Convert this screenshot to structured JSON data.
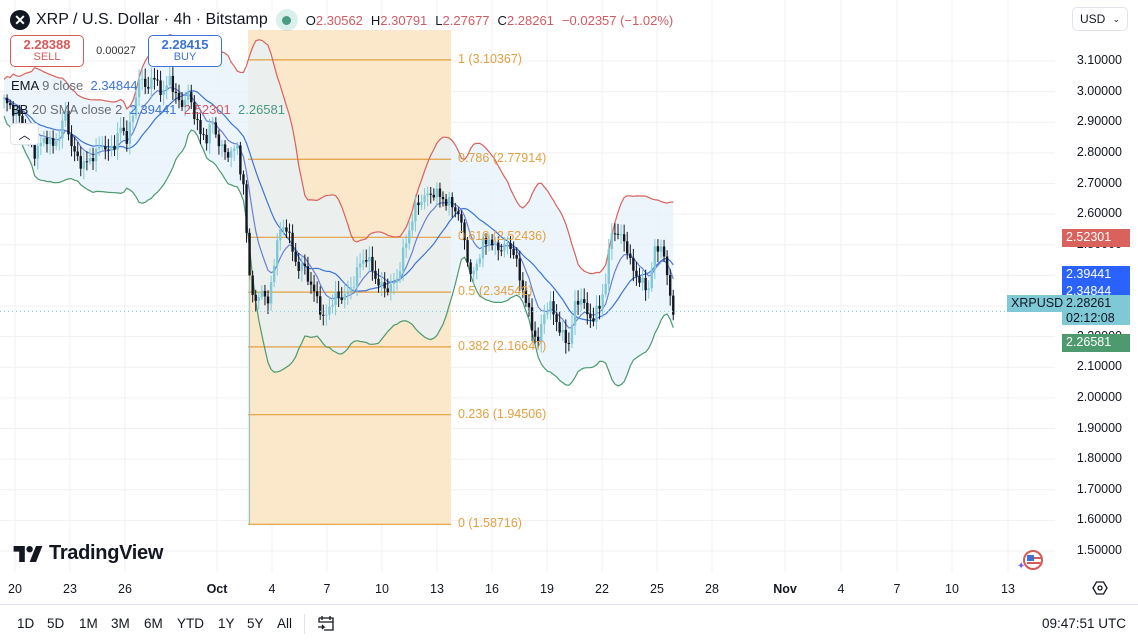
{
  "header": {
    "symbol_icon": "xrp-logo-icon",
    "title": "XRP / U.S. Dollar · 4h · Bitstamp",
    "market_status": "open",
    "ohlc": {
      "o_label": "O",
      "o": "2.30562",
      "h_label": "H",
      "h": "2.30791",
      "l_label": "L",
      "l": "2.27677",
      "c_label": "C",
      "c": "2.28261",
      "change": "−0.02357 (−1.02%)"
    }
  },
  "trade": {
    "sell_price": "2.28388",
    "sell_label": "SELL",
    "spread": "0.00027",
    "buy_price": "2.28415",
    "buy_label": "BUY"
  },
  "indicators": {
    "ema": {
      "name": "EMA",
      "params": "9 close",
      "value": "2.34844"
    },
    "bb": {
      "name": "BB",
      "params": "20 SMA close 2",
      "basis": "2.39441",
      "upper": "2.52301",
      "lower": "2.26581"
    }
  },
  "currency": "USD",
  "collapse_icon": "chevron-up-icon",
  "colors": {
    "up": "#7fc8d6",
    "down": "#131722",
    "bb_upper": "#d9625c",
    "bb_basis": "#3b74d4",
    "bb_lower": "#4c9a6e",
    "ema": "#6a7fd6",
    "fib": "#e3a040",
    "fib_zone": "#fbe6c6",
    "band_fill": "#e6f1fa"
  },
  "y_axis": [
    "3.10000",
    "3.00000",
    "2.90000",
    "2.80000",
    "2.70000",
    "2.60000",
    "2.50000",
    "2.40000",
    "2.30000",
    "2.20000",
    "2.10000",
    "2.00000",
    "1.90000",
    "1.80000",
    "1.70000",
    "1.60000",
    "1.50000"
  ],
  "price_tags": [
    {
      "label": "2.52301",
      "color": "#d9625c"
    },
    {
      "label": "2.39441",
      "color": "#2962ff"
    },
    {
      "label": "2.34844",
      "color": "#2962ff"
    },
    {
      "label": "2.28261",
      "sub": "02:12:08",
      "symbol": "XRPUSD",
      "color": "#7fc8d6"
    },
    {
      "label": "2.26581",
      "color": "#4c9a6e"
    }
  ],
  "x_axis": [
    {
      "label": "20",
      "bold": false
    },
    {
      "label": "23",
      "bold": false
    },
    {
      "label": "26",
      "bold": false
    },
    {
      "label": "Oct",
      "bold": true
    },
    {
      "label": "4",
      "bold": false
    },
    {
      "label": "7",
      "bold": false
    },
    {
      "label": "10",
      "bold": false
    },
    {
      "label": "13",
      "bold": false
    },
    {
      "label": "16",
      "bold": false
    },
    {
      "label": "19",
      "bold": false
    },
    {
      "label": "22",
      "bold": false
    },
    {
      "label": "25",
      "bold": false
    },
    {
      "label": "28",
      "bold": false
    },
    {
      "label": "Nov",
      "bold": true
    },
    {
      "label": "4",
      "bold": false
    },
    {
      "label": "7",
      "bold": false
    },
    {
      "label": "10",
      "bold": false
    },
    {
      "label": "13",
      "bold": false
    }
  ],
  "fib_levels": [
    {
      "label": "1 (3.10367)",
      "price": 3.10367
    },
    {
      "label": "0.786 (2.77914)",
      "price": 2.77914
    },
    {
      "label": "0.618 (2.52436)",
      "price": 2.52436
    },
    {
      "label": "0.5 (2.34542)",
      "price": 2.34542
    },
    {
      "label": "0.382 (2.16647)",
      "price": 2.16647
    },
    {
      "label": "0.236 (1.94506)",
      "price": 1.94506
    },
    {
      "label": "0 (1.58716)",
      "price": 1.58716
    }
  ],
  "bottom_bar": {
    "ranges": [
      "1D",
      "5D",
      "1M",
      "3M",
      "6M",
      "YTD",
      "1Y",
      "5Y",
      "All"
    ],
    "date_range_icon": "calendar-goto-icon",
    "time": "09:47:51 UTC"
  },
  "branding": {
    "logo": "TradingView"
  },
  "chart_data": {
    "type": "candlestick",
    "title": "XRP / U.S. Dollar · 4h · Bitstamp",
    "xlabel": "",
    "ylabel": "USD",
    "ylim": [
      1.45,
      3.17
    ],
    "x_ticks": [
      "Sep 20",
      "Sep 23",
      "Sep 26",
      "Oct",
      "Oct 4",
      "Oct 7",
      "Oct 10",
      "Oct 13",
      "Oct 16",
      "Oct 19",
      "Oct 22",
      "Oct 25",
      "Oct 28",
      "Nov",
      "Nov 4",
      "Nov 7",
      "Nov 10",
      "Nov 13"
    ],
    "close_path": [
      [
        0,
        2.97
      ],
      [
        2,
        2.95
      ],
      [
        4,
        2.93
      ],
      [
        6,
        2.9
      ],
      [
        8,
        2.85
      ],
      [
        10,
        2.8
      ],
      [
        12,
        2.83
      ],
      [
        14,
        2.85
      ],
      [
        16,
        2.82
      ],
      [
        18,
        2.86
      ],
      [
        20,
        2.93
      ],
      [
        22,
        2.82
      ],
      [
        24,
        2.78
      ],
      [
        26,
        2.76
      ],
      [
        28,
        2.78
      ],
      [
        30,
        2.8
      ],
      [
        32,
        2.83
      ],
      [
        34,
        2.8
      ],
      [
        36,
        2.83
      ],
      [
        38,
        2.88
      ],
      [
        40,
        2.85
      ],
      [
        42,
        2.92
      ],
      [
        44,
        3.05
      ],
      [
        46,
        3.01
      ],
      [
        48,
        3.04
      ],
      [
        50,
        3.03
      ],
      [
        52,
        2.99
      ],
      [
        54,
        3.05
      ],
      [
        56,
        2.98
      ],
      [
        58,
        2.96
      ],
      [
        60,
        2.99
      ],
      [
        62,
        2.93
      ],
      [
        64,
        2.86
      ],
      [
        66,
        2.85
      ],
      [
        68,
        2.9
      ],
      [
        70,
        2.83
      ],
      [
        72,
        2.8
      ],
      [
        74,
        2.8
      ],
      [
        76,
        2.82
      ],
      [
        78,
        2.68
      ],
      [
        80,
        2.4
      ],
      [
        82,
        2.3
      ],
      [
        84,
        2.36
      ],
      [
        86,
        2.3
      ],
      [
        88,
        2.45
      ],
      [
        90,
        2.55
      ],
      [
        92,
        2.56
      ],
      [
        94,
        2.48
      ],
      [
        96,
        2.42
      ],
      [
        98,
        2.43
      ],
      [
        100,
        2.36
      ],
      [
        102,
        2.33
      ],
      [
        104,
        2.25
      ],
      [
        106,
        2.3
      ],
      [
        108,
        2.33
      ],
      [
        110,
        2.33
      ],
      [
        112,
        2.34
      ],
      [
        114,
        2.38
      ],
      [
        116,
        2.44
      ],
      [
        118,
        2.46
      ],
      [
        120,
        2.42
      ],
      [
        122,
        2.37
      ],
      [
        124,
        2.36
      ],
      [
        126,
        2.36
      ],
      [
        128,
        2.39
      ],
      [
        130,
        2.47
      ],
      [
        132,
        2.55
      ],
      [
        134,
        2.62
      ],
      [
        136,
        2.65
      ],
      [
        138,
        2.66
      ],
      [
        140,
        2.67
      ],
      [
        142,
        2.66
      ],
      [
        144,
        2.64
      ],
      [
        146,
        2.63
      ],
      [
        148,
        2.6
      ],
      [
        150,
        2.52
      ],
      [
        152,
        2.39
      ],
      [
        154,
        2.44
      ],
      [
        156,
        2.5
      ],
      [
        158,
        2.52
      ],
      [
        160,
        2.49
      ],
      [
        162,
        2.49
      ],
      [
        164,
        2.5
      ],
      [
        166,
        2.48
      ],
      [
        168,
        2.39
      ],
      [
        170,
        2.32
      ],
      [
        172,
        2.23
      ],
      [
        174,
        2.18
      ],
      [
        176,
        2.28
      ],
      [
        178,
        2.3
      ],
      [
        180,
        2.25
      ],
      [
        182,
        2.2
      ],
      [
        184,
        2.18
      ],
      [
        186,
        2.3
      ],
      [
        188,
        2.33
      ],
      [
        190,
        2.27
      ],
      [
        192,
        2.26
      ],
      [
        194,
        2.3
      ],
      [
        196,
        2.38
      ],
      [
        198,
        2.55
      ],
      [
        200,
        2.53
      ],
      [
        202,
        2.52
      ],
      [
        204,
        2.44
      ],
      [
        206,
        2.4
      ],
      [
        208,
        2.37
      ],
      [
        210,
        2.36
      ],
      [
        212,
        2.48
      ],
      [
        214,
        2.5
      ],
      [
        216,
        2.4
      ],
      [
        218,
        2.28
      ]
    ],
    "series_last_values": {
      "EMA 9": 2.34844,
      "BB basis": 2.39441,
      "BB upper": 2.52301,
      "BB lower": 2.26581,
      "last": 2.28261
    }
  }
}
